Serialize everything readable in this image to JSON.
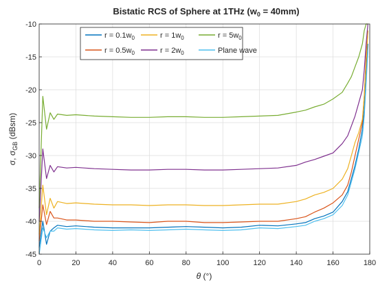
{
  "chart_data": {
    "type": "line",
    "title": "Bistatic RCS of Sphere at 1THz (w",
    "title_sub": "0",
    "title_end": " = 40mm)",
    "xlabel_sym": "θ",
    "xlabel_unit": " (°)",
    "ylabel_a": "σ, σ",
    "ylabel_sub": "GB",
    "ylabel_unit": " (dBsm)",
    "xlim": [
      0,
      180
    ],
    "ylim": [
      -45,
      -10
    ],
    "xticks": [
      "0",
      "20",
      "40",
      "60",
      "80",
      "100",
      "120",
      "140",
      "160",
      "180"
    ],
    "yticks": [
      "-10",
      "-15",
      "-20",
      "-25",
      "-30",
      "-35",
      "-40",
      "-45"
    ],
    "grid": true,
    "legend_position": "top-left",
    "x": [
      0,
      2,
      4,
      6,
      8,
      10,
      15,
      20,
      30,
      40,
      50,
      60,
      70,
      80,
      90,
      100,
      110,
      120,
      130,
      140,
      145,
      150,
      155,
      160,
      165,
      168,
      170,
      172,
      174,
      176,
      177,
      178,
      179
    ],
    "series": [
      {
        "name_a": "r = 0.1w",
        "name_sub": "0",
        "color": "#0072BD",
        "values": [
          -44,
          -40,
          -43.5,
          -41.5,
          -41,
          -40.6,
          -40.8,
          -40.7,
          -40.9,
          -41,
          -41,
          -41,
          -40.9,
          -40.8,
          -40.9,
          -41,
          -40.9,
          -40.6,
          -40.7,
          -40.4,
          -40.2,
          -39.6,
          -39.2,
          -38.6,
          -37,
          -35.5,
          -33.5,
          -31.5,
          -29,
          -26,
          -23,
          -18,
          -13
        ]
      },
      {
        "name_a": "r = 0.5w",
        "name_sub": "0",
        "color": "#D95319",
        "values": [
          -43,
          -37.5,
          -40.5,
          -38.5,
          -39.5,
          -39.5,
          -39.8,
          -39.8,
          -40,
          -40,
          -40.1,
          -40.2,
          -40,
          -40,
          -40.2,
          -40.2,
          -40.1,
          -40,
          -40,
          -39.6,
          -39.3,
          -38.6,
          -38,
          -37.2,
          -36,
          -34.5,
          -32.5,
          -30,
          -27.5,
          -25,
          -21,
          -15,
          -11
        ]
      },
      {
        "name_a": "r = 1w",
        "name_sub": "0",
        "color": "#EDB120",
        "values": [
          -42,
          -34.5,
          -39,
          -36.5,
          -38,
          -37,
          -37.3,
          -37.2,
          -37.4,
          -37.5,
          -37.5,
          -37.6,
          -37.5,
          -37.5,
          -37.6,
          -37.6,
          -37.5,
          -37.4,
          -37.4,
          -37,
          -36.6,
          -36,
          -35.6,
          -35,
          -33.6,
          -32,
          -30,
          -28,
          -26.5,
          -24.5,
          -21,
          -16,
          -11
        ]
      },
      {
        "name_a": "r = 2w",
        "name_sub": "0",
        "color": "#7E2F8E",
        "values": [
          -40,
          -29,
          -33.5,
          -31.5,
          -32.5,
          -31.7,
          -31.9,
          -31.8,
          -32,
          -32.1,
          -32.2,
          -32.2,
          -32.1,
          -32.1,
          -32.2,
          -32.2,
          -32.1,
          -32,
          -31.9,
          -31.5,
          -31,
          -30.6,
          -30.1,
          -29.6,
          -28.2,
          -27,
          -25.5,
          -24,
          -22,
          -20,
          -17,
          -13,
          -10
        ]
      },
      {
        "name_a": "r = 5w",
        "name_sub": "0",
        "color": "#77AC30",
        "values": [
          -38,
          -21,
          -26,
          -23.5,
          -24.5,
          -23.7,
          -23.9,
          -23.8,
          -24,
          -24.1,
          -24.2,
          -24.2,
          -24.1,
          -24.1,
          -24.2,
          -24.2,
          -24.1,
          -24,
          -23.9,
          -23.4,
          -23.1,
          -22.6,
          -22.2,
          -21.4,
          -20.4,
          -19,
          -18,
          -16.5,
          -15,
          -13,
          -11,
          -10,
          -10
        ]
      },
      {
        "name_a": "Plane wave",
        "name_sub": "",
        "color": "#4DBEEE",
        "values": [
          -45,
          -41,
          -42.5,
          -41.5,
          -41.5,
          -41,
          -41.2,
          -41.1,
          -41.3,
          -41.4,
          -41.3,
          -41.4,
          -41.3,
          -41.2,
          -41.3,
          -41.4,
          -41.3,
          -41,
          -41.1,
          -40.8,
          -40.6,
          -40,
          -39.6,
          -39,
          -37.6,
          -36,
          -34,
          -32,
          -29.5,
          -27,
          -24,
          -19,
          -14
        ]
      }
    ]
  }
}
